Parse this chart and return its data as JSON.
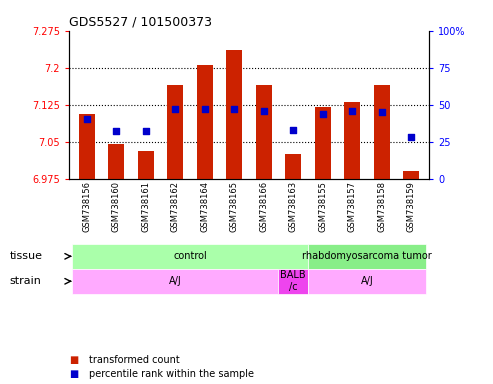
{
  "title": "GDS5527 / 101500373",
  "samples": [
    "GSM738156",
    "GSM738160",
    "GSM738161",
    "GSM738162",
    "GSM738164",
    "GSM738165",
    "GSM738166",
    "GSM738163",
    "GSM738155",
    "GSM738157",
    "GSM738158",
    "GSM738159"
  ],
  "bar_values": [
    7.105,
    7.045,
    7.03,
    7.165,
    7.205,
    7.235,
    7.165,
    7.025,
    7.12,
    7.13,
    7.165,
    6.99
  ],
  "percentile_values": [
    40,
    32,
    32,
    47,
    47,
    47,
    46,
    33,
    44,
    46,
    45,
    28
  ],
  "ymin": 6.975,
  "ymax": 7.275,
  "yticks": [
    6.975,
    7.05,
    7.125,
    7.2,
    7.275
  ],
  "y2ticks": [
    0,
    25,
    50,
    75,
    100
  ],
  "bar_color": "#cc2200",
  "dot_color": "#0000cc",
  "tissue_groups": [
    {
      "label": "control",
      "start": 0,
      "end": 7,
      "color": "#aaffaa"
    },
    {
      "label": "rhabdomyosarcoma tumor",
      "start": 8,
      "end": 11,
      "color": "#88ee88"
    }
  ],
  "strain_groups": [
    {
      "label": "A/J",
      "start": 0,
      "end": 6,
      "color": "#ffaaff"
    },
    {
      "label": "BALB\n/c",
      "start": 7,
      "end": 7,
      "color": "#ee44ee"
    },
    {
      "label": "A/J",
      "start": 8,
      "end": 11,
      "color": "#ffaaff"
    }
  ],
  "tissue_label": "tissue",
  "strain_label": "strain",
  "legend_items": [
    {
      "label": "transformed count",
      "color": "#cc2200"
    },
    {
      "label": "percentile rank within the sample",
      "color": "#0000cc"
    }
  ],
  "bar_width": 0.55,
  "grid_lines": [
    7.05,
    7.125,
    7.2
  ],
  "dot_size": 16
}
